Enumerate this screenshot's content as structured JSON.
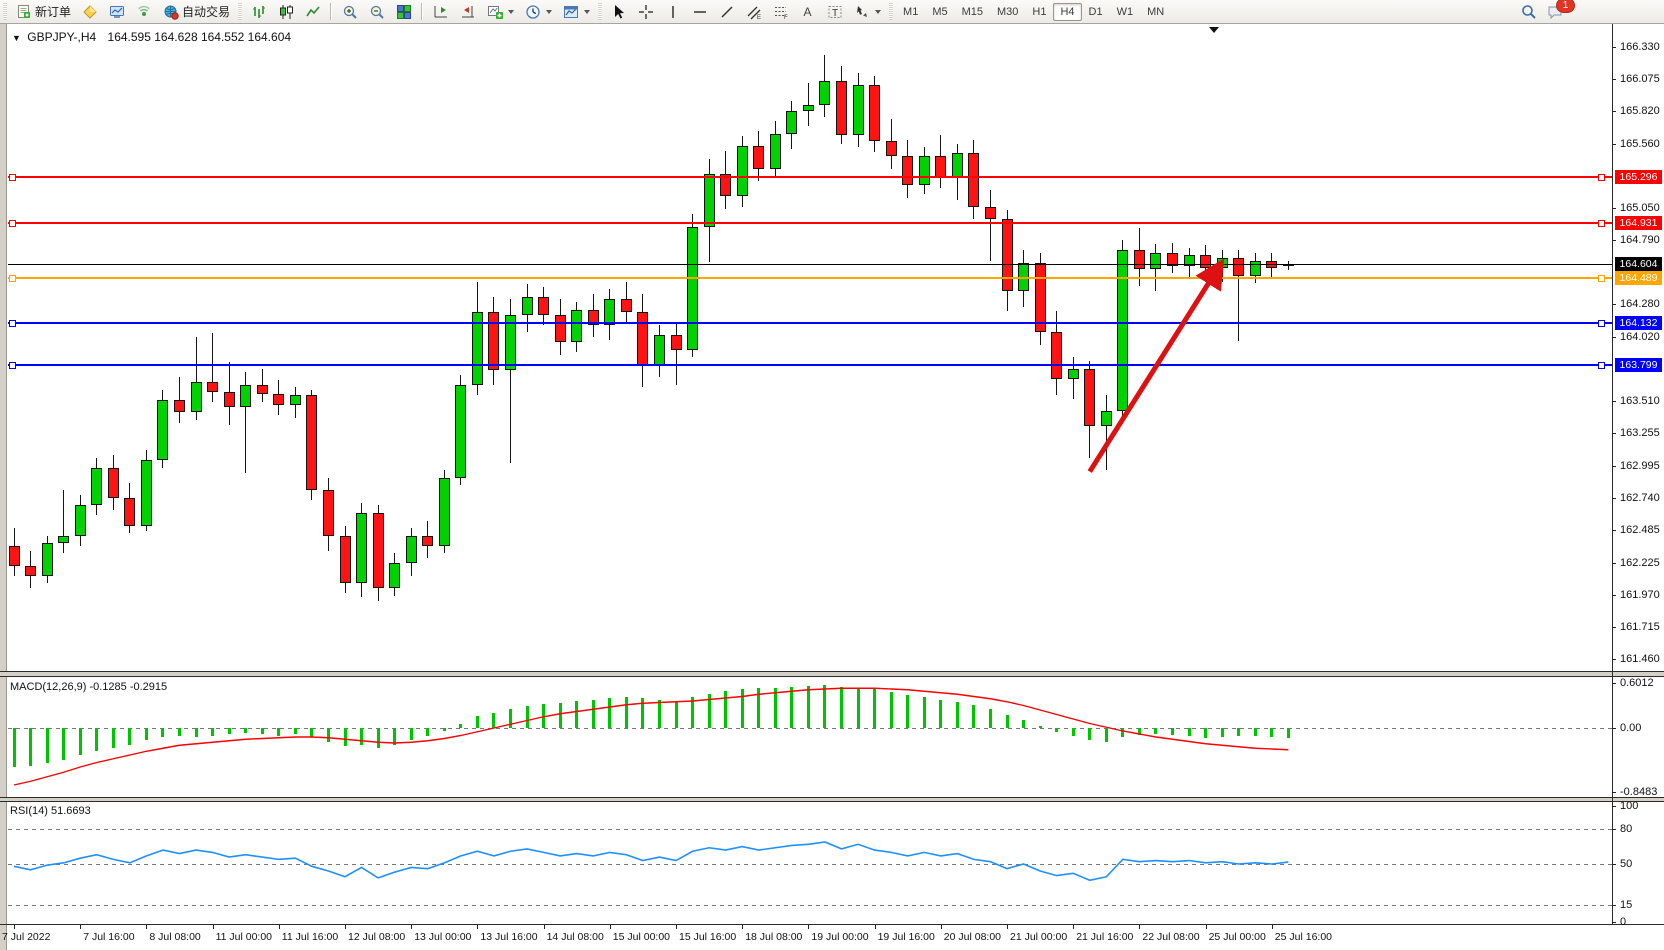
{
  "toolbar": {
    "new_order": "新订单",
    "autotrading": "自动交易",
    "notification_count": "1",
    "periods": [
      {
        "label": "M1",
        "active": false
      },
      {
        "label": "M5",
        "active": false
      },
      {
        "label": "M15",
        "active": false
      },
      {
        "label": "M30",
        "active": false
      },
      {
        "label": "H1",
        "active": false
      },
      {
        "label": "H4",
        "active": true
      },
      {
        "label": "D1",
        "active": false
      },
      {
        "label": "W1",
        "active": false
      },
      {
        "label": "MN",
        "active": false
      }
    ]
  },
  "header": {
    "symbol_period": "GBPJPY-,H4",
    "open": "164.595",
    "high": "164.628",
    "low": "164.552",
    "close": "164.604"
  },
  "price_axis": {
    "ticks": [
      "166.330",
      "166.075",
      "165.820",
      "165.560",
      "165.050",
      "164.790",
      "164.280",
      "164.020",
      "163.510",
      "163.255",
      "162.995",
      "162.740",
      "162.485",
      "162.225",
      "161.970",
      "161.715",
      "161.460"
    ]
  },
  "macd_axis": {
    "ticks": [
      "0.6012",
      "0.00",
      "-0.8483"
    ]
  },
  "rsi_axis": {
    "ticks": [
      "100",
      "80",
      "50",
      "15",
      "0"
    ]
  },
  "indicators": {
    "macd": {
      "name": "MACD",
      "params": "12,26,9",
      "value_main": "-0.1285",
      "value_signal": "-0.2915"
    },
    "rsi": {
      "name": "RSI",
      "params": "14",
      "value": "51.6693"
    }
  },
  "colors": {
    "bull": "#00d200",
    "bear": "#ff1414",
    "macd_hist": "#00c400",
    "macd_signal": "#ff0000",
    "rsi_line": "#1e90ff",
    "line_red": "#ff0000",
    "line_orange": "#ffa500",
    "line_blue": "#0000ff",
    "current": "#000000",
    "arrow": "#dd1111"
  },
  "chart_data": {
    "type": "candlestick",
    "symbol": "GBPJPY-",
    "timeframe": "H4",
    "ylim": [
      161.38,
      166.45
    ],
    "time_labels": [
      "7 Jul 2022",
      "7 Jul 16:00",
      "8 Jul 08:00",
      "11 Jul 00:00",
      "11 Jul 16:00",
      "12 Jul 08:00",
      "13 Jul 00:00",
      "13 Jul 16:00",
      "14 Jul 08:00",
      "15 Jul 00:00",
      "15 Jul 16:00",
      "18 Jul 08:00",
      "19 Jul 00:00",
      "19 Jul 16:00",
      "20 Jul 08:00",
      "21 Jul 00:00",
      "21 Jul 16:00",
      "22 Jul 08:00",
      "25 Jul 00:00",
      "25 Jul 16:00"
    ],
    "label_every": 4,
    "candles": [
      [
        "7 Jul 00:00",
        162.36,
        162.5,
        162.12,
        162.2
      ],
      [
        "7 Jul 04:00",
        162.2,
        162.32,
        162.02,
        162.12
      ],
      [
        "7 Jul 08:00",
        162.12,
        162.44,
        162.06,
        162.38
      ],
      [
        "7 Jul 12:00",
        162.38,
        162.8,
        162.3,
        162.44
      ],
      [
        "7 Jul 16:00",
        162.44,
        162.76,
        162.36,
        162.68
      ],
      [
        "7 Jul 20:00",
        162.68,
        163.06,
        162.6,
        162.98
      ],
      [
        "8 Jul 00:00",
        162.98,
        163.08,
        162.64,
        162.74
      ],
      [
        "8 Jul 04:00",
        162.74,
        162.86,
        162.46,
        162.52
      ],
      [
        "8 Jul 08:00",
        162.52,
        163.12,
        162.48,
        163.04
      ],
      [
        "8 Jul 12:00",
        163.04,
        163.6,
        162.98,
        163.52
      ],
      [
        "8 Jul 16:00",
        163.52,
        163.7,
        163.34,
        163.42
      ],
      [
        "8 Jul 20:00",
        163.42,
        164.02,
        163.36,
        163.66
      ],
      [
        "11 Jul 00:00",
        163.66,
        164.05,
        163.5,
        163.58
      ],
      [
        "11 Jul 04:00",
        163.58,
        163.82,
        163.32,
        163.46
      ],
      [
        "11 Jul 08:00",
        163.46,
        163.74,
        162.94,
        163.64
      ],
      [
        "11 Jul 12:00",
        163.64,
        163.77,
        163.5,
        163.57
      ],
      [
        "11 Jul 16:00",
        163.57,
        163.68,
        163.4,
        163.48
      ],
      [
        "11 Jul 20:00",
        163.48,
        163.62,
        163.38,
        163.56
      ],
      [
        "12 Jul 00:00",
        163.56,
        163.6,
        162.72,
        162.8
      ],
      [
        "12 Jul 04:00",
        162.8,
        162.9,
        162.32,
        162.44
      ],
      [
        "12 Jul 08:00",
        162.44,
        162.52,
        161.98,
        162.06
      ],
      [
        "12 Jul 12:00",
        162.06,
        162.7,
        161.95,
        162.62
      ],
      [
        "12 Jul 16:00",
        162.62,
        162.68,
        161.92,
        162.02
      ],
      [
        "12 Jul 20:00",
        162.02,
        162.3,
        161.96,
        162.22
      ],
      [
        "13 Jul 00:00",
        162.22,
        162.5,
        162.12,
        162.44
      ],
      [
        "13 Jul 04:00",
        162.44,
        162.56,
        162.26,
        162.36
      ],
      [
        "13 Jul 08:00",
        162.36,
        162.96,
        162.3,
        162.9
      ],
      [
        "13 Jul 12:00",
        162.9,
        163.72,
        162.84,
        163.64
      ],
      [
        "13 Jul 16:00",
        163.64,
        164.46,
        163.56,
        164.22
      ],
      [
        "13 Jul 20:00",
        164.22,
        164.34,
        163.64,
        163.76
      ],
      [
        "14 Jul 00:00",
        163.76,
        164.32,
        163.02,
        164.2
      ],
      [
        "14 Jul 04:00",
        164.2,
        164.44,
        164.06,
        164.34
      ],
      [
        "14 Jul 08:00",
        164.34,
        164.42,
        164.12,
        164.2
      ],
      [
        "14 Jul 12:00",
        164.2,
        164.32,
        163.88,
        163.98
      ],
      [
        "14 Jul 16:00",
        163.98,
        164.3,
        163.9,
        164.24
      ],
      [
        "14 Jul 20:00",
        164.24,
        164.36,
        164.02,
        164.12
      ],
      [
        "15 Jul 00:00",
        164.12,
        164.4,
        164.0,
        164.32
      ],
      [
        "15 Jul 04:00",
        164.32,
        164.46,
        164.14,
        164.22
      ],
      [
        "15 Jul 08:00",
        164.22,
        164.36,
        163.62,
        163.8
      ],
      [
        "15 Jul 12:00",
        163.8,
        164.12,
        163.7,
        164.04
      ],
      [
        "15 Jul 16:00",
        164.04,
        164.14,
        163.64,
        163.92
      ],
      [
        "15 Jul 20:00",
        163.92,
        165.0,
        163.86,
        164.9
      ],
      [
        "18 Jul 00:00",
        164.9,
        165.44,
        164.62,
        165.32
      ],
      [
        "18 Jul 04:00",
        165.32,
        165.5,
        165.04,
        165.14
      ],
      [
        "18 Jul 08:00",
        165.14,
        165.62,
        165.06,
        165.54
      ],
      [
        "18 Jul 12:00",
        165.54,
        165.66,
        165.26,
        165.36
      ],
      [
        "18 Jul 16:00",
        165.36,
        165.74,
        165.3,
        165.64
      ],
      [
        "18 Jul 20:00",
        165.64,
        165.9,
        165.52,
        165.82
      ],
      [
        "19 Jul 00:00",
        165.82,
        166.04,
        165.7,
        165.87
      ],
      [
        "19 Jul 04:00",
        165.87,
        166.27,
        165.77,
        166.06
      ],
      [
        "19 Jul 08:00",
        166.06,
        166.18,
        165.56,
        165.63
      ],
      [
        "19 Jul 12:00",
        165.63,
        166.12,
        165.53,
        166.03
      ],
      [
        "19 Jul 16:00",
        166.03,
        166.1,
        165.49,
        165.58
      ],
      [
        "19 Jul 20:00",
        165.58,
        165.76,
        165.36,
        165.46
      ],
      [
        "20 Jul 00:00",
        165.46,
        165.59,
        165.13,
        165.23
      ],
      [
        "20 Jul 04:00",
        165.23,
        165.53,
        165.16,
        165.46
      ],
      [
        "20 Jul 08:00",
        165.46,
        165.63,
        165.21,
        165.29
      ],
      [
        "20 Jul 12:00",
        165.29,
        165.56,
        165.11,
        165.49
      ],
      [
        "20 Jul 16:00",
        165.49,
        165.59,
        164.96,
        165.06
      ],
      [
        "20 Jul 20:00",
        165.06,
        165.19,
        164.63,
        164.96
      ],
      [
        "21 Jul 00:00",
        164.96,
        165.03,
        164.23,
        164.39
      ],
      [
        "21 Jul 04:00",
        164.39,
        164.71,
        164.26,
        164.61
      ],
      [
        "21 Jul 08:00",
        164.61,
        164.69,
        163.96,
        164.06
      ],
      [
        "21 Jul 12:00",
        164.06,
        164.23,
        163.56,
        163.69
      ],
      [
        "21 Jul 16:00",
        163.69,
        163.86,
        163.53,
        163.77
      ],
      [
        "21 Jul 20:00",
        163.77,
        163.83,
        163.06,
        163.31
      ],
      [
        "22 Jul 00:00",
        163.31,
        163.56,
        162.96,
        163.43
      ],
      [
        "22 Jul 04:00",
        163.43,
        164.79,
        163.36,
        164.71
      ],
      [
        "22 Jul 08:00",
        164.71,
        164.89,
        164.43,
        164.56
      ],
      [
        "22 Jul 12:00",
        164.56,
        164.76,
        164.39,
        164.69
      ],
      [
        "22 Jul 16:00",
        164.69,
        164.77,
        164.53,
        164.59
      ],
      [
        "22 Jul 20:00",
        164.59,
        164.73,
        164.49,
        164.67
      ],
      [
        "25 Jul 00:00",
        164.67,
        164.75,
        164.49,
        164.57
      ],
      [
        "25 Jul 04:00",
        164.57,
        164.71,
        164.46,
        164.65
      ],
      [
        "25 Jul 08:00",
        164.65,
        164.71,
        163.99,
        164.51
      ],
      [
        "25 Jul 12:00",
        164.51,
        164.69,
        164.45,
        164.63
      ],
      [
        "25 Jul 16:00",
        164.63,
        164.69,
        164.49,
        164.57
      ],
      [
        "25 Jul 20:00",
        164.595,
        164.628,
        164.552,
        164.604
      ]
    ],
    "hlines": [
      {
        "price": 165.296,
        "label": "165.296",
        "color": "#ff0000"
      },
      {
        "price": 164.931,
        "label": "164.931",
        "color": "#ff0000"
      },
      {
        "price": 164.489,
        "label": "164.489",
        "color": "#ffa500"
      },
      {
        "price": 164.132,
        "label": "164.132",
        "color": "#0000ff"
      },
      {
        "price": 163.799,
        "label": "163.799",
        "color": "#0000ff"
      }
    ],
    "current_price": {
      "price": 164.604,
      "label": "164.604",
      "color": "#000000"
    },
    "arrow_annotation": {
      "from_index": 65,
      "from_price": 162.95,
      "to_index": 72.8,
      "to_price": 164.58
    },
    "macd": {
      "range": [
        -0.8483,
        0.6012
      ],
      "histogram": [
        -0.52,
        -0.5,
        -0.46,
        -0.42,
        -0.36,
        -0.3,
        -0.26,
        -0.22,
        -0.16,
        -0.12,
        -0.1,
        -0.12,
        -0.1,
        -0.08,
        -0.06,
        -0.08,
        -0.1,
        -0.08,
        -0.12,
        -0.18,
        -0.24,
        -0.22,
        -0.26,
        -0.22,
        -0.16,
        -0.1,
        -0.04,
        0.06,
        0.16,
        0.2,
        0.26,
        0.3,
        0.32,
        0.34,
        0.36,
        0.38,
        0.4,
        0.42,
        0.4,
        0.38,
        0.36,
        0.42,
        0.46,
        0.5,
        0.52,
        0.53,
        0.54,
        0.55,
        0.56,
        0.57,
        0.55,
        0.54,
        0.52,
        0.48,
        0.44,
        0.42,
        0.38,
        0.35,
        0.31,
        0.25,
        0.17,
        0.11,
        0.03,
        -0.05,
        -0.11,
        -0.16,
        -0.19,
        -0.12,
        -0.09,
        -0.08,
        -0.09,
        -0.11,
        -0.13,
        -0.12,
        -0.11,
        -0.11,
        -0.12,
        -0.13
      ],
      "signal": [
        -0.76,
        -0.71,
        -0.65,
        -0.59,
        -0.52,
        -0.46,
        -0.41,
        -0.36,
        -0.31,
        -0.27,
        -0.23,
        -0.21,
        -0.19,
        -0.17,
        -0.15,
        -0.14,
        -0.13,
        -0.12,
        -0.12,
        -0.13,
        -0.15,
        -0.17,
        -0.19,
        -0.2,
        -0.19,
        -0.17,
        -0.14,
        -0.1,
        -0.05,
        0.0,
        0.05,
        0.1,
        0.15,
        0.19,
        0.22,
        0.25,
        0.28,
        0.31,
        0.33,
        0.34,
        0.35,
        0.36,
        0.38,
        0.4,
        0.42,
        0.45,
        0.47,
        0.49,
        0.51,
        0.52,
        0.53,
        0.53,
        0.53,
        0.52,
        0.51,
        0.49,
        0.47,
        0.45,
        0.42,
        0.39,
        0.35,
        0.3,
        0.24,
        0.18,
        0.12,
        0.06,
        0.01,
        -0.04,
        -0.08,
        -0.12,
        -0.15,
        -0.18,
        -0.21,
        -0.23,
        -0.25,
        -0.27,
        -0.28,
        -0.29
      ]
    },
    "rsi": {
      "levels": [
        80,
        50,
        15
      ],
      "values": [
        48,
        45,
        49,
        51,
        55,
        58,
        54,
        51,
        57,
        62,
        59,
        62,
        60,
        56,
        58,
        56,
        54,
        55,
        48,
        44,
        39,
        47,
        38,
        43,
        47,
        46,
        51,
        57,
        61,
        57,
        61,
        63,
        60,
        57,
        59,
        57,
        60,
        58,
        53,
        56,
        53,
        61,
        64,
        62,
        65,
        62,
        64,
        66,
        67,
        69,
        63,
        67,
        62,
        60,
        57,
        60,
        57,
        59,
        54,
        52,
        46,
        50,
        44,
        40,
        42,
        36,
        39,
        54,
        52,
        53,
        52,
        53,
        51,
        52,
        50,
        51,
        50,
        51.6693
      ]
    }
  }
}
